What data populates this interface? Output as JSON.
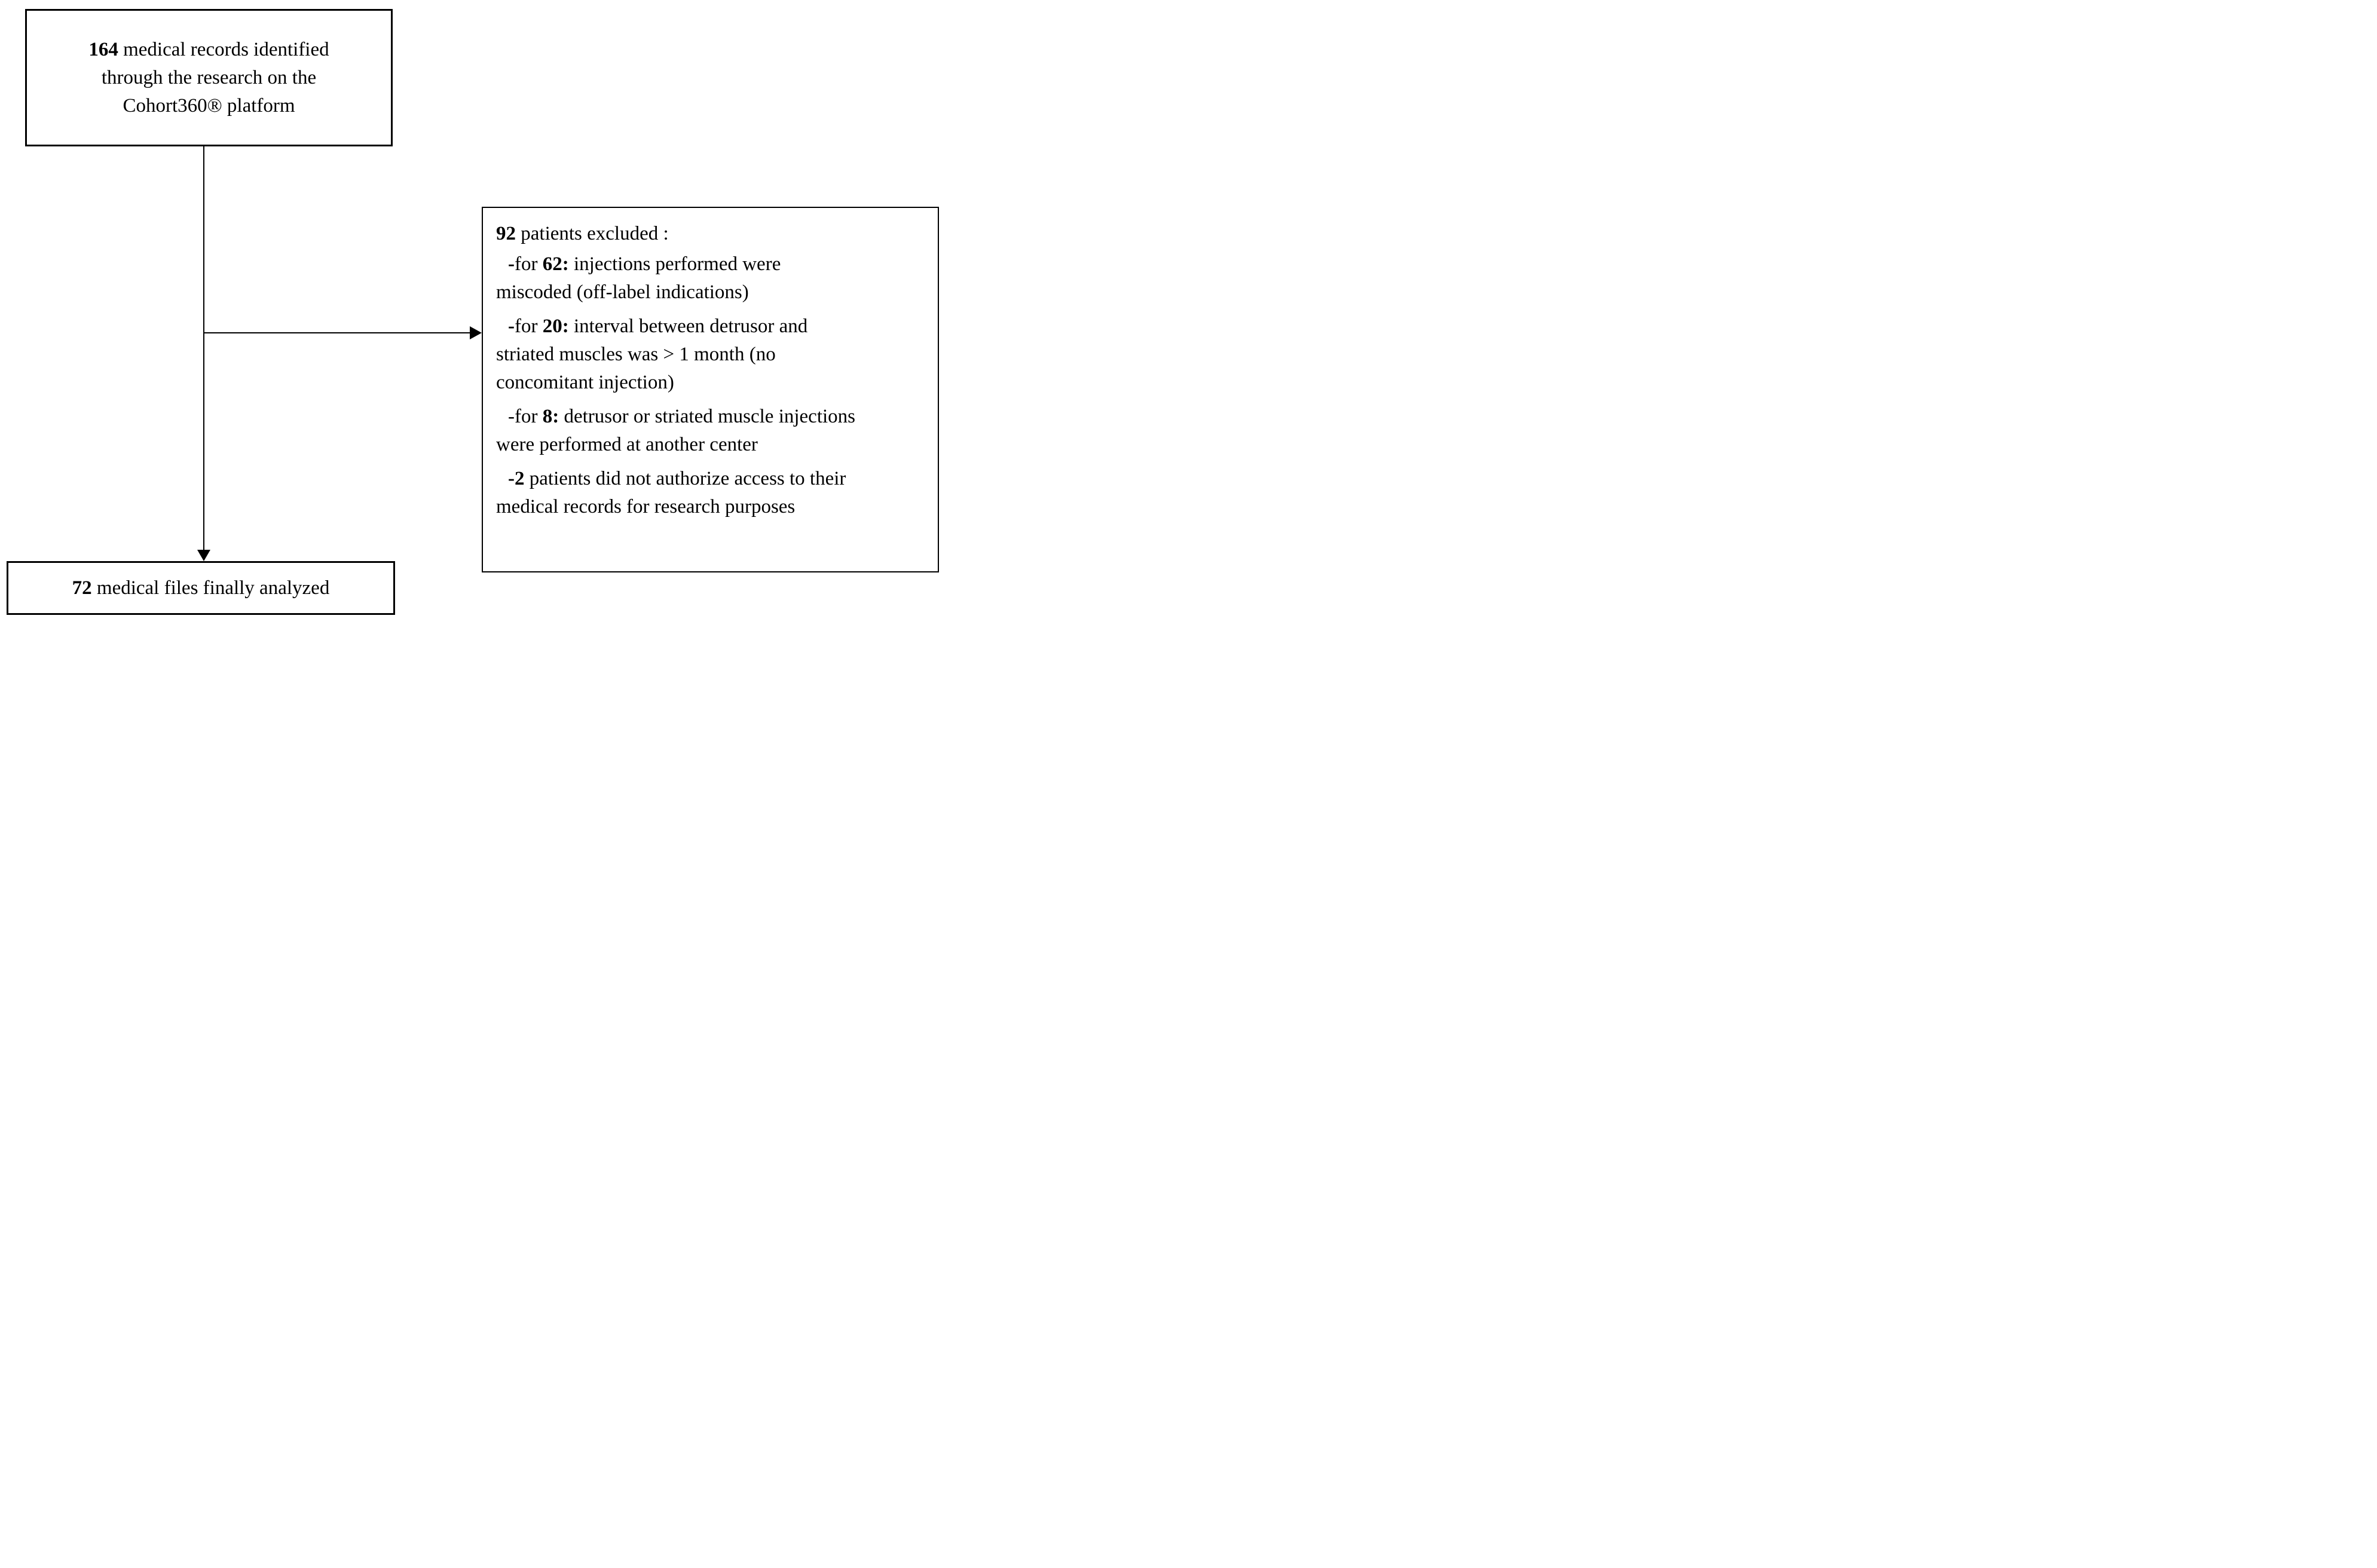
{
  "colors": {
    "background": "#ffffff",
    "border": "#000000",
    "text": "#000000"
  },
  "flow": {
    "identified_box": {
      "lines": [
        [
          {
            "t": "164",
            "b": true
          },
          {
            "t": " medical records identified",
            "b": false
          }
        ],
        [
          {
            "t": "through the research on the",
            "b": false
          }
        ],
        [
          {
            "t": "Cohort360® platform",
            "b": false
          }
        ]
      ]
    },
    "exclusion_box": {
      "paragraphs": [
        {
          "lines": [
            [
              {
                "t": "92",
                "b": true
              },
              {
                "t": " patients excluded :",
                "b": false
              }
            ]
          ]
        },
        {
          "lines": [
            [
              {
                "t": "-",
                "b": true
              },
              {
                "t": "for ",
                "b": false
              },
              {
                "t": "62:",
                "b": true
              },
              {
                "t": " injections performed were",
                "b": false
              }
            ],
            [
              {
                "t": "miscoded (off-label indications)",
                "b": false
              }
            ]
          ]
        },
        {
          "lines": [
            [
              {
                "t": "-",
                "b": true
              },
              {
                "t": "for ",
                "b": false
              },
              {
                "t": "20:",
                "b": true
              },
              {
                "t": " interval between detrusor and",
                "b": false
              }
            ],
            [
              {
                "t": "striated muscles was > 1 month (no",
                "b": false
              }
            ],
            [
              {
                "t": "concomitant injection)",
                "b": false
              }
            ]
          ]
        },
        {
          "lines": [
            [
              {
                "t": "-for ",
                "b": false
              },
              {
                "t": "8:",
                "b": true
              },
              {
                "t": " detrusor or striated muscle injections",
                "b": false
              }
            ],
            [
              {
                "t": "were performed at another center",
                "b": false
              }
            ]
          ]
        },
        {
          "lines": [
            [
              {
                "t": "-2",
                "b": true
              },
              {
                "t": " patients did not authorize access to their",
                "b": false
              }
            ],
            [
              {
                "t": "medical records for research purposes",
                "b": false
              }
            ]
          ]
        }
      ]
    },
    "final_box": {
      "lines": [
        [
          {
            "t": "72",
            "b": true
          },
          {
            "t": " medical files finally analyzed",
            "b": false
          }
        ]
      ]
    }
  }
}
